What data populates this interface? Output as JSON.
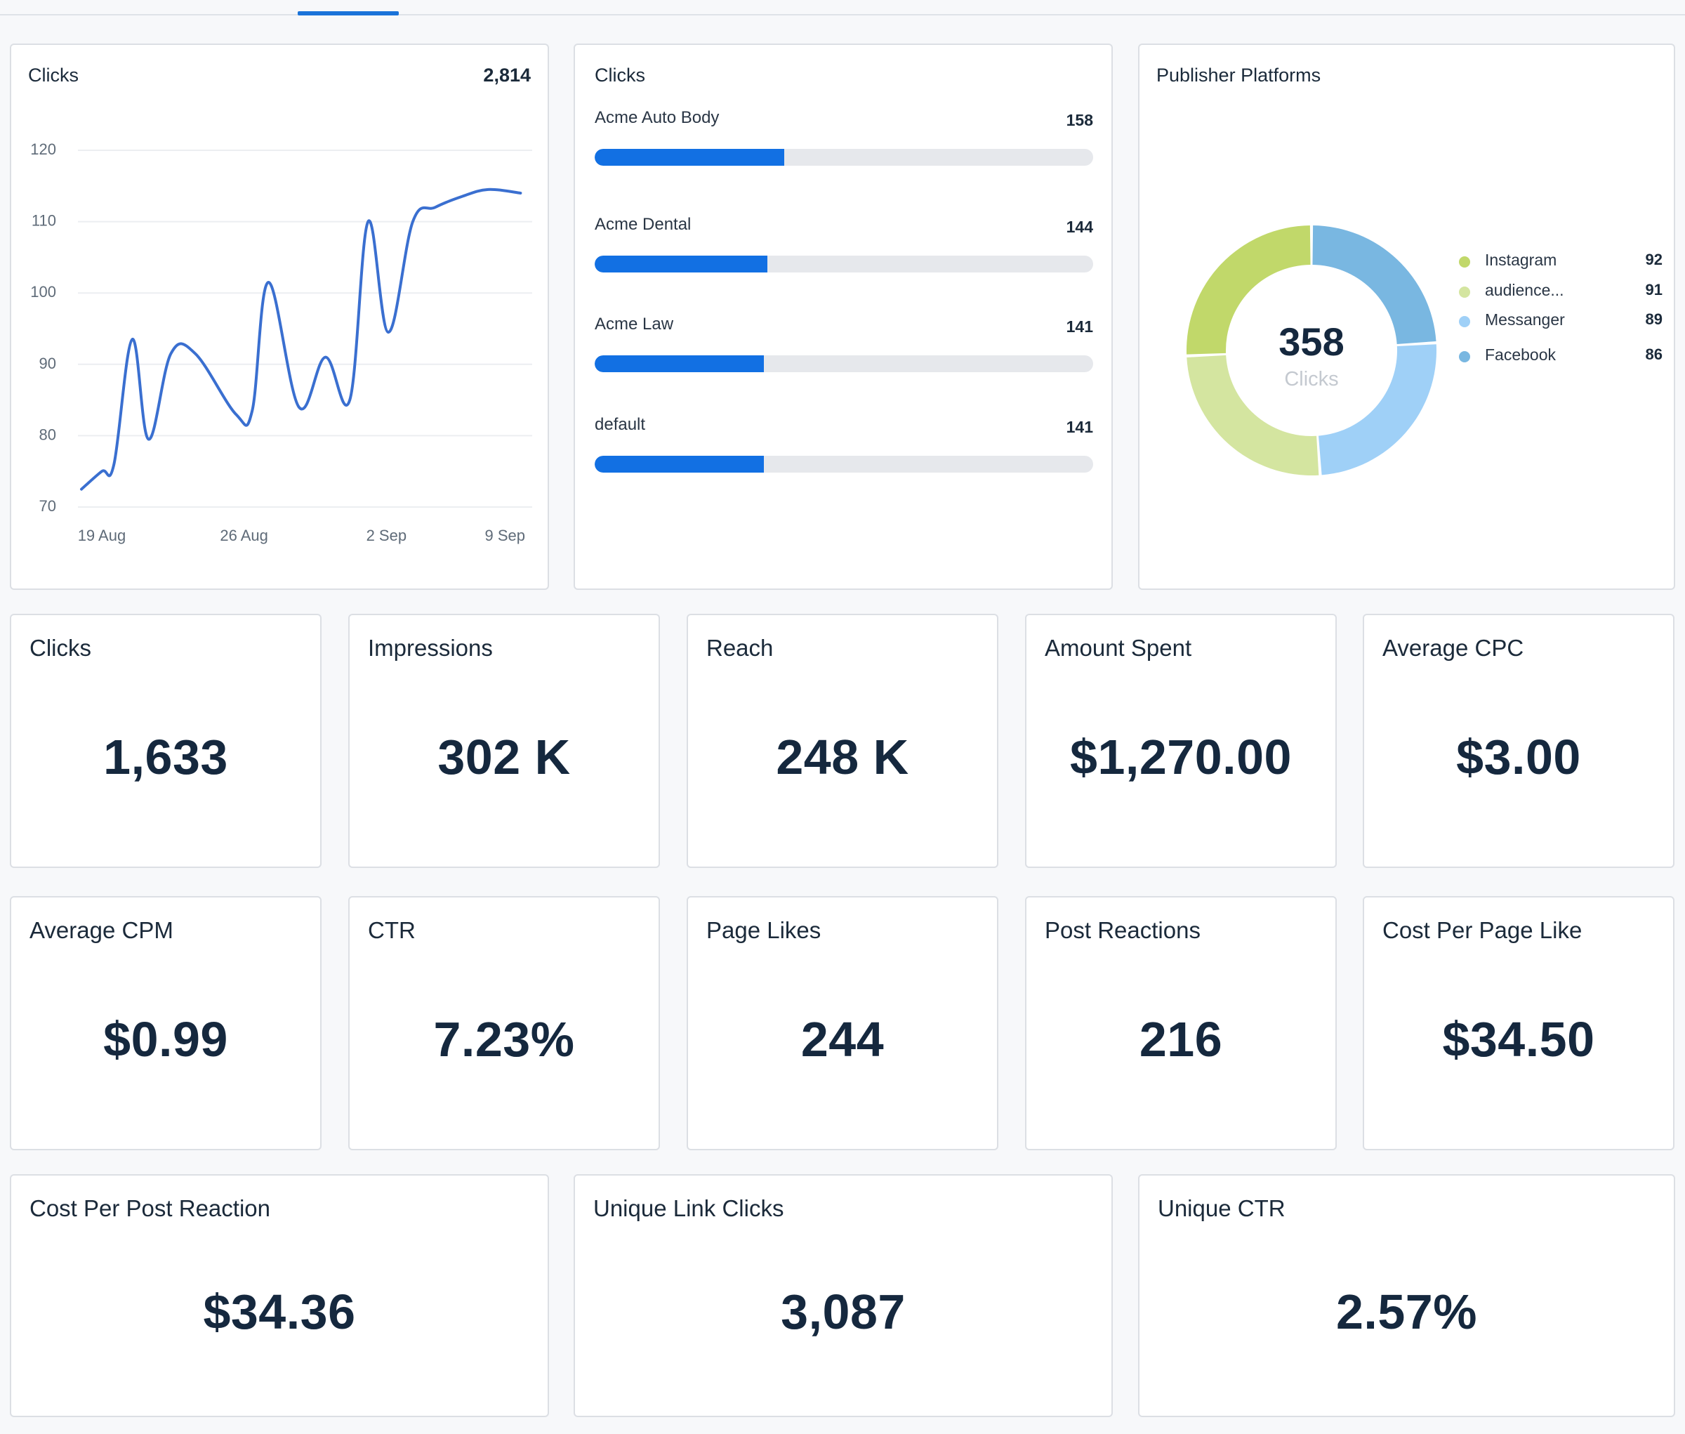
{
  "line_card": {
    "title": "Clicks",
    "total": "2,814"
  },
  "bar_card": {
    "title": "Clicks",
    "items": [
      {
        "label": "Acme Auto Body",
        "value": 158
      },
      {
        "label": "Acme Dental",
        "value": 144
      },
      {
        "label": "Acme Law",
        "value": 141
      },
      {
        "label": "default",
        "value": 141
      }
    ],
    "max": 415
  },
  "donut_card": {
    "title": "Publisher Platforms",
    "center_value": "358",
    "center_label": "Clicks",
    "segments": [
      {
        "label": "Instagram",
        "value": 92,
        "color": "#c1d86a"
      },
      {
        "label": "audience...",
        "value": 91,
        "color": "#d4e5a0"
      },
      {
        "label": "Messanger",
        "value": 89,
        "color": "#9fd0f7"
      },
      {
        "label": "Facebook",
        "value": 86,
        "color": "#79b7e1"
      }
    ]
  },
  "stats": [
    {
      "title": "Clicks",
      "value": "1,633"
    },
    {
      "title": "Impressions",
      "value": "302 K"
    },
    {
      "title": "Reach",
      "value": "248 K"
    },
    {
      "title": "Amount Spent",
      "value": "$1,270.00"
    },
    {
      "title": "Average CPC",
      "value": "$3.00"
    },
    {
      "title": "Average CPM",
      "value": "$0.99"
    },
    {
      "title": "CTR",
      "value": "7.23%"
    },
    {
      "title": "Page Likes",
      "value": "244"
    },
    {
      "title": "Post Reactions",
      "value": "216"
    },
    {
      "title": "Cost Per Page Like",
      "value": "$34.50"
    },
    {
      "title": "Cost Per Post Reaction",
      "value": "$34.36"
    },
    {
      "title": "Unique Link Clicks",
      "value": "3,087"
    },
    {
      "title": "Unique CTR",
      "value": "2.57%"
    }
  ],
  "colors": {
    "line": "#3a6fd0",
    "bar": "#1270e3",
    "accent": "#1a73d9"
  },
  "chart_data": {
    "type": "line",
    "title": "Clicks",
    "xlabel": "",
    "ylabel": "",
    "ylim": [
      70,
      120
    ],
    "yticks": [
      "70",
      "80",
      "90",
      "100",
      "110",
      "120"
    ],
    "xticks": [
      "19 Aug",
      "26 Aug",
      "2 Sep",
      "9 Sep"
    ],
    "xlim": [
      0,
      22
    ],
    "xtick_positions": [
      1,
      8,
      15,
      22
    ],
    "x": [
      0,
      1,
      1.6,
      2.5,
      3.3,
      4.4,
      5.6,
      7.6,
      8.4,
      9.2,
      10.7,
      12.0,
      13.2,
      14.1,
      15.1,
      16.3,
      17.4,
      18.7,
      20.0,
      21.6
    ],
    "values": [
      72.5,
      75,
      76,
      93.5,
      79.5,
      91.5,
      91.5,
      83,
      83.5,
      101.5,
      84,
      91,
      85,
      110,
      94.5,
      110,
      112,
      113.5,
      114.5,
      114
    ]
  }
}
